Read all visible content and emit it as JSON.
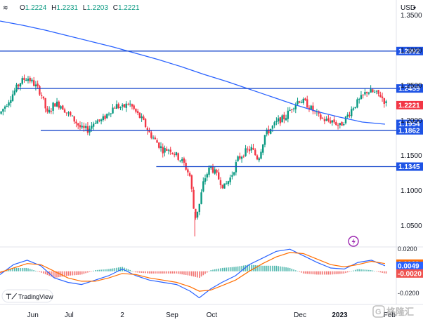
{
  "ohlc": {
    "o_label": "O",
    "o": "1.2224",
    "h_label": "H",
    "h": "1.2231",
    "l_label": "L",
    "l": "1.2203",
    "c_label": "C",
    "c": "1.2221"
  },
  "currency": "USD",
  "brand": "TradingView",
  "watermark": "格隆汇",
  "colors": {
    "up": "#089981",
    "down": "#f23645",
    "ma": "#2962ff",
    "level": "#1848cc",
    "label_bg": "#1e53e5",
    "current_bg": "#f23645",
    "macd": "#2962ff",
    "signal": "#ff6d00",
    "hist_up": "#26a69a",
    "hist_down": "#ef5350",
    "grid_text": "#131722"
  },
  "chart_data": [
    {
      "type": "candlestick",
      "title": "GBPUSD daily",
      "ylim": [
        1.02,
        1.372
      ],
      "y_ticks": [
        "1.3500",
        "1.3000",
        "1.2500",
        "1.2000",
        "1.1500",
        "1.1000",
        "1.0500"
      ],
      "y_tick_values": [
        1.35,
        1.3,
        1.25,
        1.2,
        1.15,
        1.1,
        1.05
      ],
      "x_ticks": [
        "Jun",
        "Jul",
        "2",
        "Sep",
        "Oct",
        "Dec",
        "2023",
        "Feb"
      ],
      "x_tick_days": [
        29,
        61,
        108,
        152,
        187,
        265,
        300,
        344
      ],
      "x_days_range": [
        0,
        345
      ],
      "moving_average": [
        [
          0,
          1.342
        ],
        [
          20,
          1.336
        ],
        [
          40,
          1.329
        ],
        [
          60,
          1.321
        ],
        [
          80,
          1.313
        ],
        [
          100,
          1.305
        ],
        [
          120,
          1.296
        ],
        [
          140,
          1.287
        ],
        [
          160,
          1.277
        ],
        [
          180,
          1.266
        ],
        [
          200,
          1.256
        ],
        [
          220,
          1.245
        ],
        [
          240,
          1.234
        ],
        [
          260,
          1.223
        ],
        [
          280,
          1.213
        ],
        [
          300,
          1.205
        ],
        [
          320,
          1.198
        ],
        [
          340,
          1.195
        ]
      ],
      "horizontal_levels": [
        {
          "label": "1.2992",
          "value": 1.2992,
          "day_from": 0
        },
        {
          "label": "1.2459",
          "value": 1.2459,
          "day_from": 15
        },
        {
          "label": "1.1862",
          "value": 1.1862,
          "day_from": 36
        },
        {
          "label": "1.1345",
          "value": 1.1345,
          "day_from": 138
        }
      ],
      "price_labels": [
        {
          "label": "1.1954",
          "value": 1.1954
        }
      ],
      "current_price": {
        "label": "1.2221",
        "value": 1.2221
      },
      "close_path": [
        [
          0,
          1.21
        ],
        [
          6,
          1.225
        ],
        [
          12,
          1.24
        ],
        [
          18,
          1.255
        ],
        [
          24,
          1.262
        ],
        [
          30,
          1.252
        ],
        [
          36,
          1.24
        ],
        [
          42,
          1.208
        ],
        [
          48,
          1.225
        ],
        [
          54,
          1.222
        ],
        [
          60,
          1.21
        ],
        [
          66,
          1.2
        ],
        [
          72,
          1.188
        ],
        [
          78,
          1.187
        ],
        [
          84,
          1.2
        ],
        [
          90,
          1.2
        ],
        [
          96,
          1.212
        ],
        [
          102,
          1.222
        ],
        [
          108,
          1.218
        ],
        [
          114,
          1.225
        ],
        [
          120,
          1.212
        ],
        [
          126,
          1.2
        ],
        [
          132,
          1.182
        ],
        [
          138,
          1.17
        ],
        [
          144,
          1.158
        ],
        [
          150,
          1.16
        ],
        [
          156,
          1.15
        ],
        [
          162,
          1.14
        ],
        [
          168,
          1.12
        ],
        [
          172,
          1.06
        ],
        [
          176,
          1.08
        ],
        [
          180,
          1.115
        ],
        [
          186,
          1.135
        ],
        [
          192,
          1.12
        ],
        [
          198,
          1.105
        ],
        [
          204,
          1.12
        ],
        [
          210,
          1.145
        ],
        [
          216,
          1.155
        ],
        [
          222,
          1.16
        ],
        [
          228,
          1.145
        ],
        [
          234,
          1.18
        ],
        [
          240,
          1.19
        ],
        [
          246,
          1.2
        ],
        [
          252,
          1.205
        ],
        [
          258,
          1.22
        ],
        [
          264,
          1.23
        ],
        [
          270,
          1.225
        ],
        [
          276,
          1.215
        ],
        [
          282,
          1.205
        ],
        [
          288,
          1.2
        ],
        [
          294,
          1.2
        ],
        [
          300,
          1.192
        ],
        [
          306,
          1.205
        ],
        [
          312,
          1.22
        ],
        [
          318,
          1.23
        ],
        [
          324,
          1.242
        ],
        [
          330,
          1.24
        ],
        [
          336,
          1.236
        ],
        [
          342,
          1.222
        ]
      ]
    },
    {
      "type": "line",
      "title": "MACD",
      "ylim": [
        -0.03,
        0.022
      ],
      "y_ticks": [
        "0.0200",
        "-0.0200"
      ],
      "y_tick_values": [
        0.02,
        -0.02
      ],
      "value_labels": [
        {
          "label": "0.0069",
          "value": 0.0069,
          "series": "signal"
        },
        {
          "label": "0.0049",
          "value": 0.0049,
          "series": "macd"
        },
        {
          "label": "-0.0020",
          "value": -0.002,
          "series": "histogram"
        }
      ],
      "series": [
        {
          "name": "macd",
          "points": [
            [
              0,
              -0.003
            ],
            [
              12,
              0.006
            ],
            [
              24,
              0.01
            ],
            [
              36,
              0.005
            ],
            [
              48,
              -0.006
            ],
            [
              60,
              -0.01
            ],
            [
              72,
              -0.012
            ],
            [
              84,
              -0.008
            ],
            [
              96,
              -0.004
            ],
            [
              108,
              0.002
            ],
            [
              120,
              -0.004
            ],
            [
              132,
              -0.008
            ],
            [
              144,
              -0.01
            ],
            [
              156,
              -0.012
            ],
            [
              168,
              -0.018
            ],
            [
              176,
              -0.024
            ],
            [
              186,
              -0.016
            ],
            [
              196,
              -0.01
            ],
            [
              208,
              -0.004
            ],
            [
              220,
              0.006
            ],
            [
              232,
              0.012
            ],
            [
              244,
              0.018
            ],
            [
              256,
              0.02
            ],
            [
              268,
              0.014
            ],
            [
              280,
              0.008
            ],
            [
              292,
              0.003
            ],
            [
              304,
              0.002
            ],
            [
              316,
              0.008
            ],
            [
              328,
              0.01
            ],
            [
              340,
              0.005
            ]
          ]
        },
        {
          "name": "signal",
          "points": [
            [
              0,
              -0.001
            ],
            [
              12,
              0.003
            ],
            [
              24,
              0.007
            ],
            [
              36,
              0.006
            ],
            [
              48,
              0.0
            ],
            [
              60,
              -0.006
            ],
            [
              72,
              -0.009
            ],
            [
              84,
              -0.009
            ],
            [
              96,
              -0.006
            ],
            [
              108,
              -0.002
            ],
            [
              120,
              -0.003
            ],
            [
              132,
              -0.006
            ],
            [
              144,
              -0.008
            ],
            [
              156,
              -0.01
            ],
            [
              168,
              -0.014
            ],
            [
              176,
              -0.018
            ],
            [
              186,
              -0.017
            ],
            [
              196,
              -0.013
            ],
            [
              208,
              -0.008
            ],
            [
              220,
              0.0
            ],
            [
              232,
              0.007
            ],
            [
              244,
              0.013
            ],
            [
              256,
              0.017
            ],
            [
              268,
              0.016
            ],
            [
              280,
              0.011
            ],
            [
              292,
              0.006
            ],
            [
              304,
              0.004
            ],
            [
              316,
              0.006
            ],
            [
              328,
              0.009
            ],
            [
              340,
              0.007
            ]
          ]
        }
      ]
    }
  ]
}
